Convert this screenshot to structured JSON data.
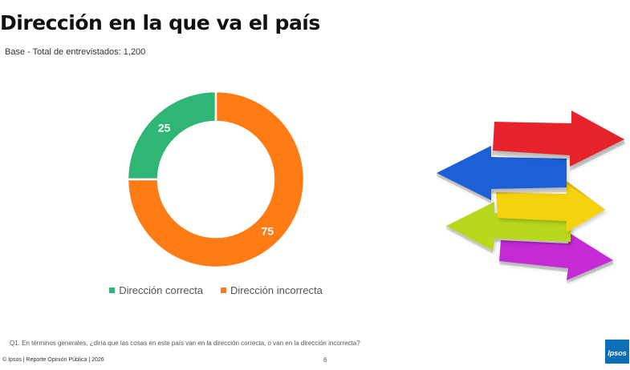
{
  "header": {
    "title": "Dirección en la que va el país",
    "subtitle": "Base - Total de entrevistados: 1,200"
  },
  "chart_data": {
    "type": "pie",
    "donut": true,
    "categories": [
      "Dirección correcta",
      "Dirección incorrecta"
    ],
    "values": [
      25,
      75
    ],
    "colors": [
      "#2fb574",
      "#ff7b14"
    ],
    "data_labels": [
      "25",
      "75"
    ],
    "legend_position": "bottom"
  },
  "legend": {
    "items": [
      {
        "label": "Dirección correcta",
        "color": "#2fb574"
      },
      {
        "label": "Dirección incorrecta",
        "color": "#ff7b14"
      }
    ]
  },
  "image": {
    "arrows_icon": "colorful-arrows-icon",
    "arrow_colors": [
      "#e8232b",
      "#1f5fd6",
      "#f6d10f",
      "#b7d81a",
      "#c42bd6"
    ]
  },
  "question": "Q1. En términos generales, ¿diría que las cosas en este país van en la dirección correcta, o van en la dirección incorrecta?",
  "footer": {
    "text": "© Ipsos | Reporte  Opinión Pública | 2026",
    "page_number": "6",
    "logo_text": "Ipsos"
  }
}
